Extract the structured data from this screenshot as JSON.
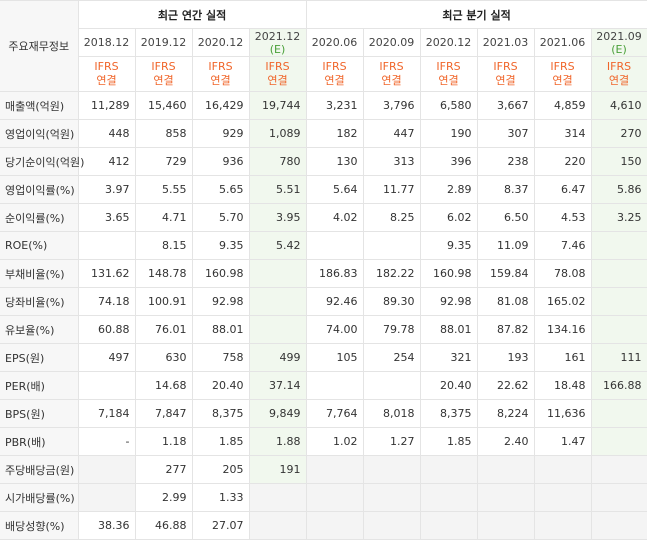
{
  "header": {
    "corner_label": "주요재무정보",
    "group_annual": "최근 연간 실적",
    "group_quarter": "최근 분기 실적",
    "periods": [
      {
        "label": "2018.12",
        "est": ""
      },
      {
        "label": "2019.12",
        "est": ""
      },
      {
        "label": "2020.12",
        "est": ""
      },
      {
        "label": "2021.12",
        "est": "(E)"
      },
      {
        "label": "2020.06",
        "est": ""
      },
      {
        "label": "2020.09",
        "est": ""
      },
      {
        "label": "2020.12",
        "est": ""
      },
      {
        "label": "2021.03",
        "est": ""
      },
      {
        "label": "2021.06",
        "est": ""
      },
      {
        "label": "2021.09",
        "est": "(E)"
      }
    ],
    "ifrs_line1": "IFRS",
    "ifrs_line2": "연결"
  },
  "rows": [
    {
      "label": "매출액(억원)",
      "values": [
        "11,289",
        "15,460",
        "16,429",
        "19,744",
        "3,231",
        "3,796",
        "6,580",
        "3,667",
        "4,859",
        "4,610"
      ]
    },
    {
      "label": "영업이익(억원)",
      "values": [
        "448",
        "858",
        "929",
        "1,089",
        "182",
        "447",
        "190",
        "307",
        "314",
        "270"
      ]
    },
    {
      "label": "당기순이익(억원)",
      "values": [
        "412",
        "729",
        "936",
        "780",
        "130",
        "313",
        "396",
        "238",
        "220",
        "150"
      ]
    },
    {
      "label": "영업이익률(%)",
      "values": [
        "3.97",
        "5.55",
        "5.65",
        "5.51",
        "5.64",
        "11.77",
        "2.89",
        "8.37",
        "6.47",
        "5.86"
      ]
    },
    {
      "label": "순이익률(%)",
      "values": [
        "3.65",
        "4.71",
        "5.70",
        "3.95",
        "4.02",
        "8.25",
        "6.02",
        "6.50",
        "4.53",
        "3.25"
      ]
    },
    {
      "label": "ROE(%)",
      "values": [
        "",
        "8.15",
        "9.35",
        "5.42",
        "",
        "",
        "9.35",
        "11.09",
        "7.46",
        ""
      ]
    },
    {
      "label": "부채비율(%)",
      "values": [
        "131.62",
        "148.78",
        "160.98",
        "",
        "186.83",
        "182.22",
        "160.98",
        "159.84",
        "78.08",
        ""
      ]
    },
    {
      "label": "당좌비율(%)",
      "values": [
        "74.18",
        "100.91",
        "92.98",
        "",
        "92.46",
        "89.30",
        "92.98",
        "81.08",
        "165.02",
        ""
      ]
    },
    {
      "label": "유보율(%)",
      "values": [
        "60.88",
        "76.01",
        "88.01",
        "",
        "74.00",
        "79.78",
        "88.01",
        "87.82",
        "134.16",
        ""
      ]
    },
    {
      "label": "EPS(원)",
      "values": [
        "497",
        "630",
        "758",
        "499",
        "105",
        "254",
        "321",
        "193",
        "161",
        "111"
      ]
    },
    {
      "label": "PER(배)",
      "values": [
        "",
        "14.68",
        "20.40",
        "37.14",
        "",
        "",
        "20.40",
        "22.62",
        "18.48",
        "166.88"
      ]
    },
    {
      "label": "BPS(원)",
      "values": [
        "7,184",
        "7,847",
        "8,375",
        "9,849",
        "7,764",
        "8,018",
        "8,375",
        "8,224",
        "11,636",
        ""
      ]
    },
    {
      "label": "PBR(배)",
      "values": [
        "-",
        "1.18",
        "1.85",
        "1.88",
        "1.02",
        "1.27",
        "1.85",
        "2.40",
        "1.47",
        ""
      ]
    },
    {
      "label": "주당배당금(원)",
      "values": [
        "",
        "277",
        "205",
        "191",
        "",
        "",
        "",
        "",
        "",
        ""
      ]
    },
    {
      "label": "시가배당률(%)",
      "values": [
        "",
        "2.99",
        "1.33",
        "",
        "",
        "",
        "",
        "",
        "",
        ""
      ]
    },
    {
      "label": "배당성향(%)",
      "values": [
        "38.36",
        "46.88",
        "27.07",
        "",
        "",
        "",
        "",
        "",
        "",
        ""
      ]
    }
  ]
}
